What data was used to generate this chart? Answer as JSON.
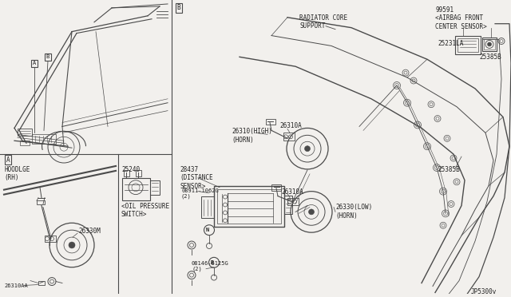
{
  "bg_color": "#f2f0ed",
  "line_color": "#4a4a4a",
  "text_color": "#222222",
  "fig_width": 6.4,
  "fig_height": 3.72,
  "dpi": 100,
  "annotations": {
    "radiator_core": "RADIATOR CORE\nSUPPORT",
    "airbag": "99591\n<AIRBAG FRONT\nCENTER SENSOR>",
    "horn_high": "26310(HIGH)\n(HORN)",
    "horn_low": "26330(LOW)\n(HORN)",
    "distance": "28437\n(DISTANCE\nSENSOR>",
    "oil_pressure": "<OIL PRESSURE\nSWITCH>",
    "hoodlge": "HOODLGE\n(RH)",
    "part_26310A_1": "26310A",
    "part_26310A_2": "26310A",
    "part_26330M": "26330M",
    "part_25240": "25240",
    "part_25231LA": "25231LA",
    "part_25385B_1": "25385B",
    "part_25385B_2": "25385B",
    "bolt1": "08911-1062G\n(2)",
    "bolt2": "08146-6125G\n(2)",
    "part_26310AA": "26310AA",
    "code": "JP5300v"
  }
}
